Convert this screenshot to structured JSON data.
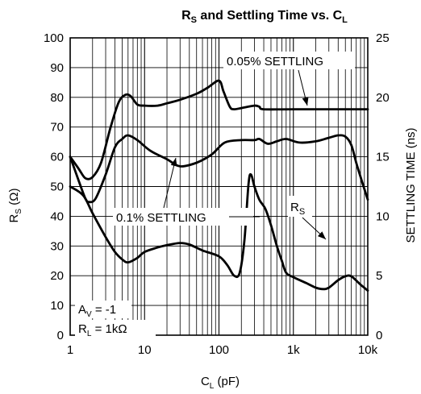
{
  "chart_data": {
    "type": "line",
    "title": {
      "main": "R",
      "main_sub": "S",
      "rest": " and Settling Time vs. C",
      "rest_sub": "L"
    },
    "x_axis": {
      "label_main": "C",
      "label_sub": "L",
      "label_unit": " (pF)",
      "scale": "log",
      "range": [
        1,
        10000
      ],
      "tick_labels": [
        "1",
        "10",
        "100",
        "1k",
        "10k"
      ],
      "tick_values": [
        1,
        10,
        100,
        1000,
        10000
      ]
    },
    "y_axis_left": {
      "label_main": "R",
      "label_sub": "S",
      "label_unit": " (Ω)",
      "range": [
        0,
        100
      ],
      "tick_labels": [
        "0",
        "10",
        "20",
        "30",
        "40",
        "50",
        "60",
        "70",
        "80",
        "90",
        "100"
      ],
      "tick_values": [
        0,
        10,
        20,
        30,
        40,
        50,
        60,
        70,
        80,
        90,
        100
      ]
    },
    "y_axis_right": {
      "label": "SETTLING TIME (ns)",
      "range": [
        0,
        25
      ],
      "tick_labels": [
        "0",
        "5",
        "10",
        "15",
        "20",
        "25"
      ],
      "tick_values": [
        0,
        5,
        10,
        15,
        20,
        25
      ]
    },
    "grid": true,
    "series": [
      {
        "name": "0.05% SETTLING",
        "axis": "right",
        "points": [
          [
            1,
            15
          ],
          [
            1.3,
            14
          ],
          [
            1.6,
            13.2
          ],
          [
            2,
            13.3
          ],
          [
            2.6,
            14.5
          ],
          [
            3.5,
            17.5
          ],
          [
            4.5,
            19.6
          ],
          [
            5.5,
            20.2
          ],
          [
            6.5,
            20.1
          ],
          [
            8,
            19.4
          ],
          [
            10,
            19.3
          ],
          [
            15,
            19.3
          ],
          [
            20,
            19.5
          ],
          [
            30,
            19.8
          ],
          [
            50,
            20.3
          ],
          [
            70,
            20.8
          ],
          [
            100,
            21.4
          ],
          [
            115,
            20.5
          ],
          [
            140,
            19.2
          ],
          [
            160,
            19
          ],
          [
            200,
            19.1
          ],
          [
            300,
            19.3
          ],
          [
            350,
            19.2
          ],
          [
            400,
            19
          ],
          [
            1000,
            19
          ],
          [
            10000,
            19
          ]
        ]
      },
      {
        "name": "0.1% SETTLING",
        "axis": "right",
        "points": [
          [
            1,
            15
          ],
          [
            1.3,
            13
          ],
          [
            1.6,
            11.5
          ],
          [
            1.8,
            11.2
          ],
          [
            2.2,
            11.5
          ],
          [
            3,
            13.5
          ],
          [
            4,
            15.8
          ],
          [
            5,
            16.5
          ],
          [
            6,
            16.8
          ],
          [
            8,
            16.4
          ],
          [
            12,
            15.5
          ],
          [
            20,
            14.8
          ],
          [
            30,
            14.2
          ],
          [
            50,
            14.5
          ],
          [
            80,
            15.2
          ],
          [
            120,
            16.2
          ],
          [
            200,
            16.4
          ],
          [
            300,
            16.4
          ],
          [
            350,
            16.5
          ],
          [
            450,
            16.1
          ],
          [
            600,
            16.3
          ],
          [
            800,
            16.5
          ],
          [
            1200,
            16.2
          ],
          [
            2000,
            16.3
          ],
          [
            3000,
            16.6
          ],
          [
            4000,
            16.8
          ],
          [
            5000,
            16.7
          ],
          [
            6000,
            16
          ],
          [
            7000,
            14.5
          ],
          [
            8000,
            13.3
          ],
          [
            10000,
            11.4
          ]
        ]
      },
      {
        "name": "R",
        "name_sub": "S",
        "axis": "left",
        "points": [
          [
            1,
            50
          ],
          [
            1.5,
            47
          ],
          [
            2,
            41
          ],
          [
            3,
            33
          ],
          [
            4,
            28
          ],
          [
            5,
            25.5
          ],
          [
            6,
            24.5
          ],
          [
            8,
            26
          ],
          [
            10,
            28
          ],
          [
            15,
            29.5
          ],
          [
            20,
            30.3
          ],
          [
            30,
            31
          ],
          [
            40,
            30.5
          ],
          [
            60,
            28.5
          ],
          [
            100,
            26.5
          ],
          [
            130,
            23.5
          ],
          [
            160,
            20
          ],
          [
            190,
            21
          ],
          [
            220,
            32
          ],
          [
            250,
            51
          ],
          [
            270,
            54
          ],
          [
            300,
            50
          ],
          [
            350,
            45.5
          ],
          [
            420,
            42.5
          ],
          [
            500,
            37
          ],
          [
            600,
            30
          ],
          [
            700,
            25
          ],
          [
            800,
            21
          ],
          [
            1000,
            19.5
          ],
          [
            1500,
            17.5
          ],
          [
            2000,
            16
          ],
          [
            2500,
            15.5
          ],
          [
            3000,
            16
          ],
          [
            4000,
            18.5
          ],
          [
            5000,
            19.8
          ],
          [
            6000,
            19.8
          ],
          [
            8000,
            17
          ],
          [
            10000,
            15
          ]
        ]
      }
    ],
    "annotations": [
      {
        "text": "0.05% SETTLING"
      },
      {
        "text": "0.1% SETTLING"
      },
      {
        "text_main": "R",
        "text_sub": "S"
      },
      {
        "text_main": "A",
        "text_sub": "V",
        "text_rest": " = -1"
      },
      {
        "text_main": "R",
        "text_sub": "L",
        "text_rest": " = 1kΩ"
      }
    ]
  }
}
